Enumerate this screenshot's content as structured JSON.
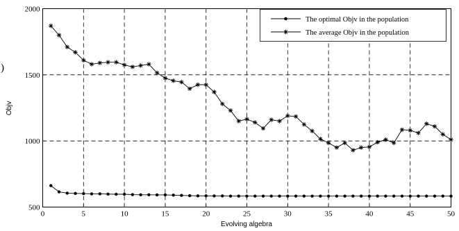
{
  "chart_data": {
    "type": "line",
    "title": "",
    "xlabel": "Evolving algebra",
    "ylabel": "Objv",
    "xlim": [
      0,
      50
    ],
    "ylim": [
      500,
      2000
    ],
    "x_ticks": [
      "0",
      "5",
      "10",
      "15",
      "20",
      "25",
      "30",
      "35",
      "40",
      "45",
      "50"
    ],
    "y_ticks": [
      "500",
      "1000",
      "1500",
      "2000"
    ],
    "grid": true,
    "legend_position": "top-right",
    "stray_mark": ")",
    "x": [
      1,
      2,
      3,
      4,
      5,
      6,
      7,
      8,
      9,
      10,
      11,
      12,
      13,
      14,
      15,
      16,
      17,
      18,
      19,
      20,
      21,
      22,
      23,
      24,
      25,
      26,
      27,
      28,
      29,
      30,
      31,
      32,
      33,
      34,
      35,
      36,
      37,
      38,
      39,
      40,
      41,
      42,
      43,
      44,
      45,
      46,
      47,
      48,
      49,
      50
    ],
    "series": [
      {
        "name": "The optimal Objv in the population",
        "marker": "dot",
        "values": [
          662,
          615,
          605,
          603,
          602,
          600,
          600,
          598,
          597,
          597,
          594,
          593,
          593,
          592,
          592,
          590,
          588,
          586,
          585,
          585,
          584,
          584,
          583,
          583,
          583,
          583,
          583,
          583,
          583,
          583,
          583,
          583,
          583,
          583,
          583,
          583,
          583,
          583,
          583,
          583,
          583,
          583,
          583,
          583,
          583,
          583,
          583,
          583,
          583,
          583
        ]
      },
      {
        "name": "The average Objv in the population",
        "marker": "star",
        "values": [
          1870,
          1800,
          1710,
          1670,
          1610,
          1580,
          1590,
          1595,
          1595,
          1575,
          1560,
          1570,
          1580,
          1515,
          1475,
          1455,
          1445,
          1395,
          1425,
          1425,
          1370,
          1280,
          1230,
          1150,
          1165,
          1140,
          1095,
          1160,
          1150,
          1190,
          1185,
          1125,
          1075,
          1015,
          985,
          950,
          985,
          930,
          950,
          955,
          990,
          1010,
          985,
          1085,
          1080,
          1060,
          1130,
          1110,
          1050,
          1010
        ]
      }
    ]
  }
}
